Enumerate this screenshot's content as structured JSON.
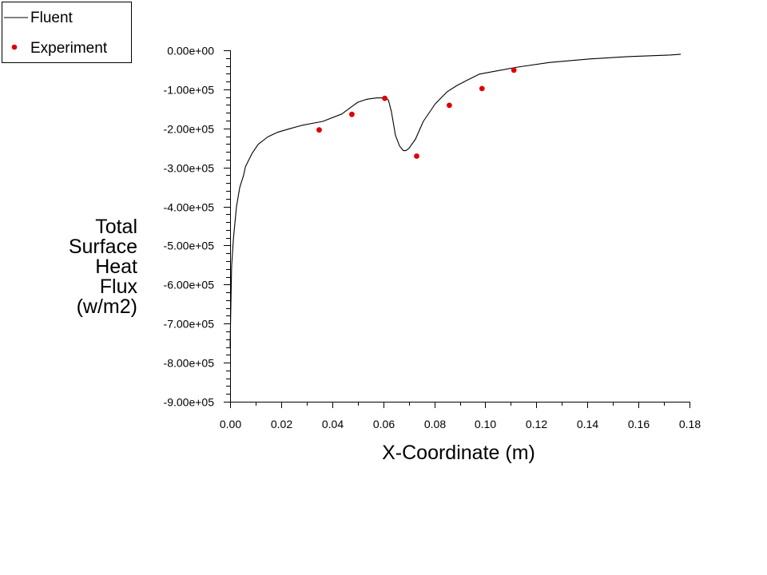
{
  "chart_data": {
    "type": "line",
    "title": "",
    "xlabel": "X-Coordinate (m)",
    "ylabel_lines": [
      "Total",
      "Surface",
      "Heat",
      "Flux",
      "(w/m2)"
    ],
    "ylabel": "Total Surface Heat Flux (w/m2)",
    "xlim": [
      0,
      0.18
    ],
    "ylim": [
      -900000,
      0
    ],
    "x_ticks": [
      0.0,
      0.02,
      0.04,
      0.06,
      0.08,
      0.1,
      0.12,
      0.14,
      0.16,
      0.18
    ],
    "x_tick_labels": [
      "0.00",
      "0.02",
      "0.04",
      "0.06",
      "0.08",
      "0.10",
      "0.12",
      "0.14",
      "0.16",
      "0.18"
    ],
    "x_minor_per_major": 1,
    "y_ticks": [
      0,
      -100000,
      -200000,
      -300000,
      -400000,
      -500000,
      -600000,
      -700000,
      -800000,
      -900000
    ],
    "y_tick_labels": [
      "0.00e+00",
      "-1.00e+05",
      "-2.00e+05",
      "-3.00e+05",
      "-4.00e+05",
      "-5.00e+05",
      "-6.00e+05",
      "-7.00e+05",
      "-8.00e+05",
      "-9.00e+05"
    ],
    "y_minor_per_major": 4,
    "grid": false,
    "legend_position": "top-left",
    "series": [
      {
        "name": "Fluent",
        "style": "line",
        "color": "#000000",
        "x": [
          0.0,
          0.0003,
          0.0006,
          0.0013,
          0.0025,
          0.0038,
          0.0053,
          0.006,
          0.0085,
          0.011,
          0.0147,
          0.0185,
          0.0232,
          0.0282,
          0.0363,
          0.0438,
          0.0479,
          0.0501,
          0.0532,
          0.0551,
          0.0576,
          0.0601,
          0.062,
          0.0632,
          0.0648,
          0.0664,
          0.0679,
          0.0689,
          0.0701,
          0.0726,
          0.0757,
          0.0804,
          0.0851,
          0.0889,
          0.093,
          0.0977,
          0.1008,
          0.1127,
          0.1252,
          0.1409,
          0.1565,
          0.1722,
          0.1766
        ],
        "y": [
          -760000,
          -650000,
          -553000,
          -482000,
          -400000,
          -351000,
          -320000,
          -298000,
          -265000,
          -241000,
          -222000,
          -210000,
          -201000,
          -192000,
          -182000,
          -163000,
          -143000,
          -133000,
          -126000,
          -124000,
          -122000,
          -122000,
          -127000,
          -157000,
          -218000,
          -245000,
          -257000,
          -257000,
          -251000,
          -228000,
          -182000,
          -137000,
          -106000,
          -90000,
          -76000,
          -61000,
          -57000,
          -43000,
          -31000,
          -22000,
          -16000,
          -12000,
          -10000
        ]
      },
      {
        "name": "Experiment",
        "style": "scatter",
        "color": "#e00000",
        "x": [
          0.0349,
          0.0477,
          0.0606,
          0.0731,
          0.0859,
          0.0987,
          0.1112
        ],
        "y": [
          -204000,
          -164000,
          -123000,
          -271000,
          -141000,
          -98000,
          -51000
        ]
      }
    ]
  },
  "legend": {
    "items": [
      {
        "label": "Fluent",
        "kind": "line"
      },
      {
        "label": "Experiment",
        "kind": "marker"
      }
    ]
  }
}
